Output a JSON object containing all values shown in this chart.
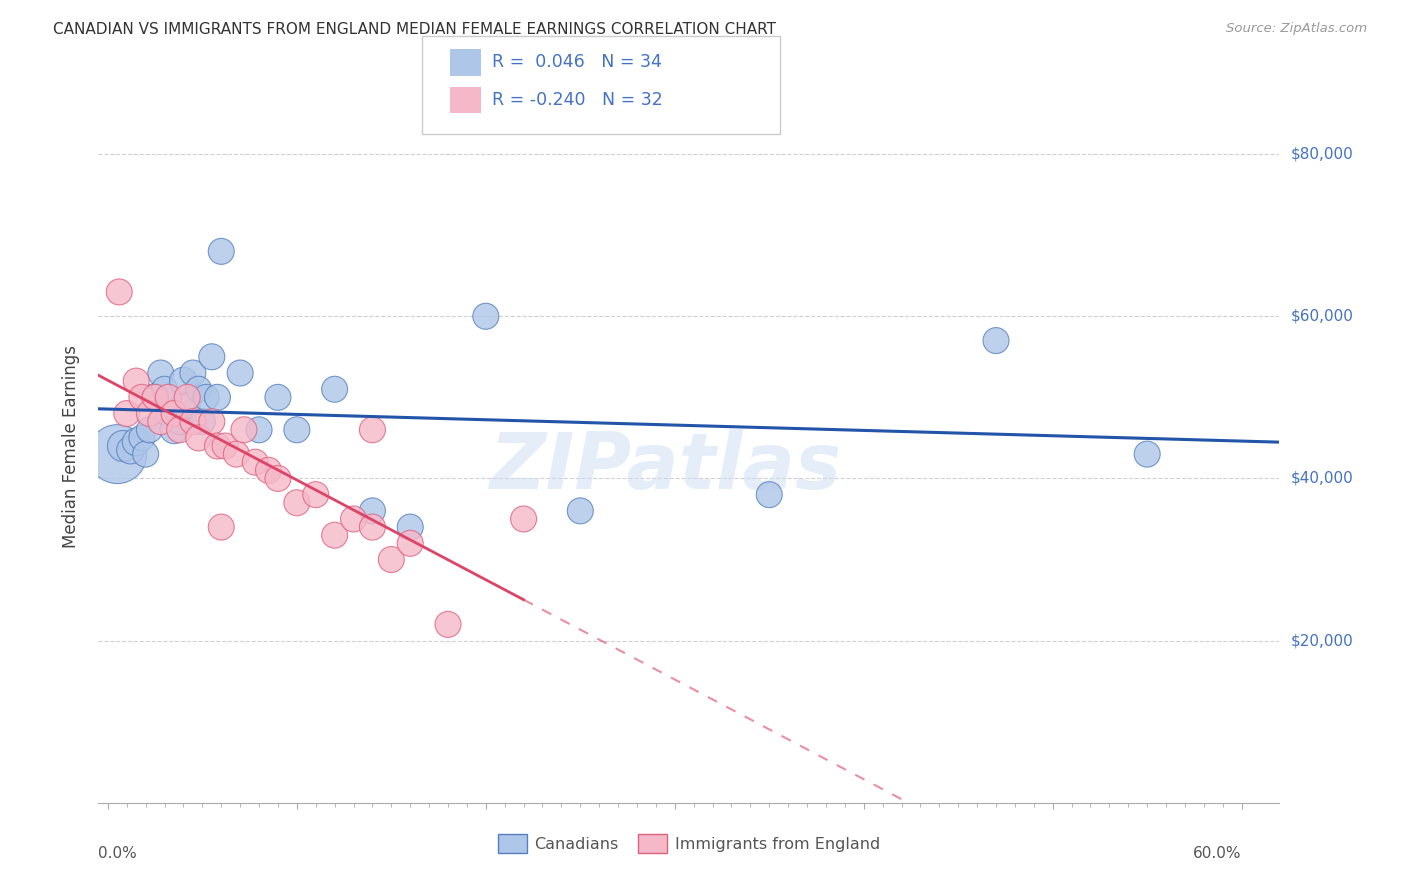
{
  "title": "CANADIAN VS IMMIGRANTS FROM ENGLAND MEDIAN FEMALE EARNINGS CORRELATION CHART",
  "source": "Source: ZipAtlas.com",
  "ylabel": "Median Female Earnings",
  "watermark": "ZIPatlas",
  "legend1_r": "0.046",
  "legend1_n": "34",
  "legend2_r": "-0.240",
  "legend2_n": "32",
  "canadian_color": "#aec6e8",
  "immigrant_color": "#f5b8c8",
  "canadian_edge_color": "#5580c0",
  "immigrant_edge_color": "#e06080",
  "canadian_line_color": "#2255aa",
  "immigrant_line_color": "#dd4466",
  "ylabel_ticks": [
    "$20,000",
    "$40,000",
    "$60,000",
    "$80,000"
  ],
  "ylabel_vals": [
    20000,
    40000,
    60000,
    80000
  ],
  "canadians_x": [
    0.005,
    0.008,
    0.012,
    0.015,
    0.018,
    0.02,
    0.022,
    0.025,
    0.028,
    0.03,
    0.032,
    0.035,
    0.038,
    0.04,
    0.042,
    0.045,
    0.048,
    0.05,
    0.052,
    0.055,
    0.058,
    0.06,
    0.07,
    0.08,
    0.09,
    0.1,
    0.12,
    0.14,
    0.16,
    0.2,
    0.25,
    0.35,
    0.47,
    0.55
  ],
  "canadians_y": [
    43000,
    44000,
    43500,
    44500,
    45000,
    43000,
    46000,
    50000,
    53000,
    51000,
    48000,
    46000,
    47000,
    52000,
    49000,
    53000,
    51000,
    47000,
    50000,
    55000,
    50000,
    68000,
    53000,
    46000,
    50000,
    46000,
    51000,
    36000,
    34000,
    60000,
    36000,
    38000,
    57000,
    43000
  ],
  "canadians_size": [
    1800,
    500,
    400,
    400,
    350,
    350,
    350,
    400,
    350,
    350,
    350,
    400,
    350,
    400,
    350,
    350,
    350,
    350,
    350,
    350,
    350,
    350,
    350,
    350,
    350,
    350,
    350,
    350,
    350,
    350,
    350,
    350,
    350,
    350
  ],
  "immigrants_x": [
    0.006,
    0.01,
    0.015,
    0.018,
    0.022,
    0.025,
    0.028,
    0.032,
    0.035,
    0.038,
    0.042,
    0.045,
    0.048,
    0.055,
    0.058,
    0.062,
    0.068,
    0.072,
    0.078,
    0.085,
    0.09,
    0.1,
    0.11,
    0.12,
    0.13,
    0.14,
    0.15,
    0.16,
    0.18,
    0.22,
    0.14,
    0.06
  ],
  "immigrants_y": [
    63000,
    48000,
    52000,
    50000,
    48000,
    50000,
    47000,
    50000,
    48000,
    46000,
    50000,
    47000,
    45000,
    47000,
    44000,
    44000,
    43000,
    46000,
    42000,
    41000,
    40000,
    37000,
    38000,
    33000,
    35000,
    34000,
    30000,
    32000,
    22000,
    35000,
    46000,
    34000
  ],
  "immigrants_size": [
    350,
    350,
    350,
    350,
    350,
    350,
    350,
    350,
    350,
    350,
    350,
    350,
    350,
    350,
    350,
    350,
    350,
    350,
    350,
    350,
    350,
    350,
    350,
    350,
    350,
    350,
    350,
    350,
    350,
    350,
    350,
    350
  ],
  "xlim": [
    -0.005,
    0.62
  ],
  "ylim": [
    0,
    88000
  ],
  "xticks": [
    0.0,
    0.1,
    0.2,
    0.3,
    0.4,
    0.5,
    0.6
  ],
  "bg_color": "#ffffff",
  "grid_color": "#d0d0d0"
}
